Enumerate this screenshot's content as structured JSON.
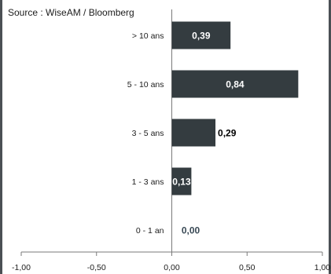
{
  "source_note": "Source : WiseAM / Bloomberg",
  "colors": {
    "bar": "#343c40",
    "label_inside": "#ffffff",
    "label_outside_dark": "#000000",
    "label_zero": "#3a4a56",
    "axis": "#7a7a7a",
    "frame": "#4b5054"
  },
  "chart_data": {
    "type": "bar",
    "orientation": "horizontal",
    "categories": [
      "> 10 ans",
      "5 - 10 ans",
      "3 - 5 ans",
      "1 - 3 ans",
      "0 - 1 an"
    ],
    "values": [
      0.39,
      0.84,
      0.29,
      0.13,
      0.0
    ],
    "value_labels": [
      "0,39",
      "0,84",
      "0,29",
      "0,13",
      "0,00"
    ],
    "xlim": [
      -1.0,
      1.0
    ],
    "xticks": [
      -1.0,
      -0.5,
      0.0,
      0.5,
      1.0
    ],
    "xtick_labels": [
      "-1,00",
      "-0,50",
      "0,00",
      "0,50",
      "1,00"
    ],
    "grid": false,
    "title": "",
    "xlabel": "",
    "ylabel": ""
  }
}
